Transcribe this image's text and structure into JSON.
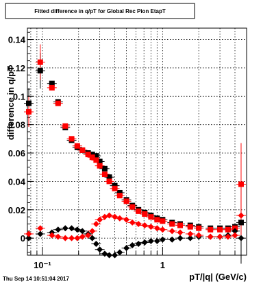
{
  "chart_data": {
    "type": "scatter",
    "title": "Fitted difference in q/pT for Global Rec Pion EtapT",
    "xlabel": "pT/|q| (GeV/c)",
    "ylabel": "difference in q/pT",
    "xscale": "log",
    "xlim": [
      0.075,
      5.0
    ],
    "ylim": [
      -0.012,
      0.148
    ],
    "y_ticks": [
      0,
      0.02,
      0.04,
      0.06,
      0.08,
      0.1,
      0.12,
      0.14
    ],
    "y_tick_labels": [
      "0",
      "0.02",
      "0.04",
      "0.06",
      "0.08",
      "0.1",
      "0.12",
      "0.14"
    ],
    "x_major_ticks": [
      0.1,
      1
    ],
    "x_tick_labels": [
      "10⁻¹",
      "1"
    ],
    "grid": true,
    "timestamp": "Thu Sep 14 10:51:04 2017",
    "series": [
      {
        "marker": "square",
        "color": "#000000",
        "points": [
          [
            0.077,
            0.095
          ],
          [
            0.096,
            0.118
          ],
          [
            0.12,
            0.109
          ],
          [
            0.135,
            0.096
          ],
          [
            0.155,
            0.078
          ],
          [
            0.175,
            0.069
          ],
          [
            0.195,
            0.064
          ],
          [
            0.215,
            0.062
          ],
          [
            0.24,
            0.06
          ],
          [
            0.26,
            0.059
          ],
          [
            0.28,
            0.058
          ],
          [
            0.3,
            0.054
          ],
          [
            0.33,
            0.049
          ],
          [
            0.36,
            0.043
          ],
          [
            0.4,
            0.037
          ],
          [
            0.44,
            0.032
          ],
          [
            0.5,
            0.027
          ],
          [
            0.56,
            0.023
          ],
          [
            0.63,
            0.02
          ],
          [
            0.71,
            0.018
          ],
          [
            0.8,
            0.016
          ],
          [
            0.9,
            0.014
          ],
          [
            1.0,
            0.013
          ],
          [
            1.2,
            0.011
          ],
          [
            1.4,
            0.01
          ],
          [
            1.7,
            0.009
          ],
          [
            2.0,
            0.008
          ],
          [
            2.5,
            0.007
          ],
          [
            3.0,
            0.007
          ],
          [
            3.5,
            0.007
          ],
          [
            4.0,
            0.008
          ],
          [
            4.5,
            0.011
          ]
        ]
      },
      {
        "marker": "square",
        "color": "#ff0000",
        "points": [
          [
            0.077,
            0.089
          ],
          [
            0.096,
            0.124
          ],
          [
            0.12,
            0.106
          ],
          [
            0.135,
            0.095
          ],
          [
            0.155,
            0.079
          ],
          [
            0.175,
            0.07
          ],
          [
            0.195,
            0.065
          ],
          [
            0.215,
            0.062
          ],
          [
            0.24,
            0.059
          ],
          [
            0.26,
            0.057
          ],
          [
            0.28,
            0.055
          ],
          [
            0.3,
            0.051
          ],
          [
            0.33,
            0.045
          ],
          [
            0.36,
            0.04
          ],
          [
            0.4,
            0.035
          ],
          [
            0.44,
            0.03
          ],
          [
            0.5,
            0.026
          ],
          [
            0.56,
            0.022
          ],
          [
            0.63,
            0.019
          ],
          [
            0.71,
            0.017
          ],
          [
            0.8,
            0.015
          ],
          [
            0.9,
            0.013
          ],
          [
            1.0,
            0.012
          ],
          [
            1.2,
            0.01
          ],
          [
            1.4,
            0.009
          ],
          [
            1.7,
            0.008
          ],
          [
            2.0,
            0.007
          ],
          [
            2.5,
            0.006
          ],
          [
            3.0,
            0.006
          ],
          [
            3.5,
            0.006
          ],
          [
            4.0,
            0.007
          ],
          [
            4.5,
            0.038
          ]
        ]
      },
      {
        "marker": "diamond",
        "color": "#000000",
        "points": [
          [
            0.077,
            0.0
          ],
          [
            0.096,
            0.003
          ],
          [
            0.12,
            0.004
          ],
          [
            0.135,
            0.006
          ],
          [
            0.155,
            0.007
          ],
          [
            0.175,
            0.007
          ],
          [
            0.195,
            0.006
          ],
          [
            0.215,
            0.005
          ],
          [
            0.24,
            0.003
          ],
          [
            0.26,
            0.0
          ],
          [
            0.28,
            -0.004
          ],
          [
            0.3,
            -0.008
          ],
          [
            0.33,
            -0.011
          ],
          [
            0.36,
            -0.012
          ],
          [
            0.4,
            -0.012
          ],
          [
            0.44,
            -0.01
          ],
          [
            0.5,
            -0.007
          ],
          [
            0.56,
            -0.005
          ],
          [
            0.63,
            -0.004
          ],
          [
            0.71,
            -0.003
          ],
          [
            0.8,
            -0.002
          ],
          [
            0.9,
            -0.002
          ],
          [
            1.0,
            -0.001
          ],
          [
            1.2,
            -0.001
          ],
          [
            1.4,
            0.0
          ],
          [
            1.7,
            0.0
          ],
          [
            2.0,
            0.001
          ],
          [
            2.5,
            0.001
          ],
          [
            3.0,
            0.001
          ],
          [
            3.5,
            0.002
          ],
          [
            4.0,
            0.005
          ],
          [
            4.5,
            0.0
          ]
        ]
      },
      {
        "marker": "diamond",
        "color": "#ff0000",
        "points": [
          [
            0.077,
            0.003
          ],
          [
            0.096,
            0.007
          ],
          [
            0.12,
            0.002
          ],
          [
            0.135,
            0.001
          ],
          [
            0.155,
            0.0
          ],
          [
            0.175,
            0.0
          ],
          [
            0.195,
            0.0
          ],
          [
            0.215,
            0.001
          ],
          [
            0.24,
            0.002
          ],
          [
            0.26,
            0.005
          ],
          [
            0.28,
            0.01
          ],
          [
            0.3,
            0.013
          ],
          [
            0.33,
            0.015
          ],
          [
            0.36,
            0.016
          ],
          [
            0.4,
            0.015
          ],
          [
            0.44,
            0.014
          ],
          [
            0.5,
            0.013
          ],
          [
            0.56,
            0.011
          ],
          [
            0.63,
            0.01
          ],
          [
            0.71,
            0.009
          ],
          [
            0.8,
            0.008
          ],
          [
            0.9,
            0.007
          ],
          [
            1.0,
            0.006
          ],
          [
            1.2,
            0.005
          ],
          [
            1.4,
            0.004
          ],
          [
            1.7,
            0.003
          ],
          [
            2.0,
            0.002
          ],
          [
            2.5,
            0.001
          ],
          [
            3.0,
            0.001
          ],
          [
            3.5,
            0.001
          ],
          [
            4.0,
            0.002
          ],
          [
            4.5,
            0.016
          ]
        ]
      }
    ]
  }
}
